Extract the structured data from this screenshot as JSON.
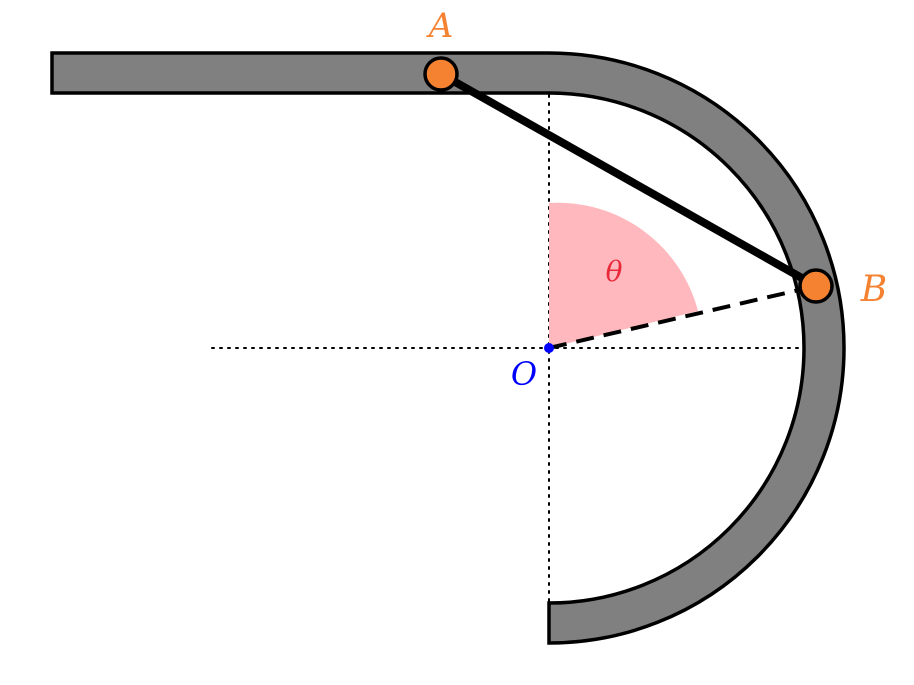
{
  "labels": {
    "point_a": "A",
    "point_b": "B",
    "origin": "O",
    "angle": "θ"
  },
  "colors": {
    "track_fill": "#808080",
    "track_edge": "#000000",
    "joint": "#f58231",
    "origin": "#0000ff",
    "angle_fill": "#ffb8bd",
    "angle_text": "#e8293a",
    "label_orange": "#f58231",
    "label_blue": "#0000ff"
  },
  "angle_deg": 74
}
